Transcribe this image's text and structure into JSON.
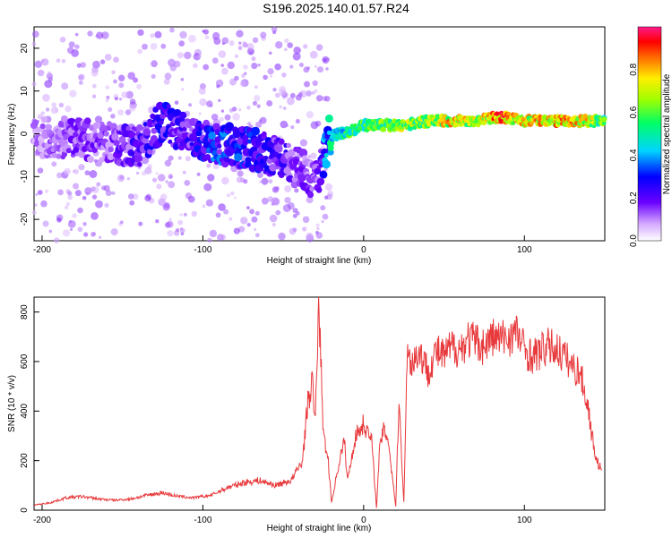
{
  "title": "S196.2025.140.01.57.R24",
  "chart_data": [
    {
      "type": "heatmap",
      "xlabel": "Height of straight line (km)",
      "ylabel": "Frequency (Hz)",
      "xlim": [
        -205,
        150
      ],
      "ylim": [
        -25,
        25
      ],
      "xticks": [
        -200,
        -100,
        0,
        100
      ],
      "xtick_labels": [
        "-200",
        "-100",
        "0",
        "100"
      ],
      "yticks": [
        -20,
        -10,
        0,
        10,
        20
      ],
      "ytick_labels": [
        "-20",
        "-10",
        "0",
        "10",
        "20"
      ],
      "colorbar": {
        "label": "Normalized spectral amplitude",
        "range": [
          0,
          1
        ],
        "ticks": [
          0.0,
          0.2,
          0.4,
          0.6,
          0.8
        ],
        "tick_labels": [
          "0.0",
          "0.2",
          "0.4",
          "0.6",
          "0.8"
        ]
      },
      "ridge": {
        "note_x": [
          -205,
          -180,
          -160,
          -140,
          -125,
          -110,
          -95,
          -80,
          -65,
          -50,
          -40,
          -30,
          -22,
          -15,
          -5,
          0,
          10,
          25,
          40,
          55,
          70,
          85,
          100,
          115,
          130,
          150
        ],
        "freq_y": [
          -1,
          -1,
          -2,
          -3,
          3,
          0,
          -2,
          -3,
          -4,
          -6,
          -8,
          -12,
          -1,
          0,
          1,
          2,
          2,
          2,
          3,
          3,
          3,
          4,
          3,
          3,
          3,
          3
        ],
        "amplitude": [
          0.1,
          0.15,
          0.15,
          0.2,
          0.25,
          0.2,
          0.3,
          0.3,
          0.25,
          0.2,
          0.15,
          0.15,
          0.4,
          0.5,
          0.6,
          0.55,
          0.6,
          0.7,
          0.65,
          0.8,
          0.7,
          0.9,
          0.75,
          0.8,
          0.85,
          0.6
        ]
      }
    },
    {
      "type": "line",
      "xlabel": "Height of straight line (km)",
      "ylabel": "SNR (10 * v/v)",
      "xlim": [
        -205,
        150
      ],
      "ylim": [
        0,
        860
      ],
      "xticks": [
        -200,
        -100,
        0,
        100
      ],
      "xtick_labels": [
        "-200",
        "-100",
        "0",
        "100"
      ],
      "yticks": [
        0,
        200,
        400,
        600,
        800
      ],
      "ytick_labels": [
        "0",
        "200",
        "400",
        "600",
        "800"
      ],
      "series": [
        {
          "color": "#e8393c",
          "x": [
            -205,
            -195,
            -185,
            -175,
            -165,
            -155,
            -145,
            -135,
            -125,
            -115,
            -105,
            -95,
            -85,
            -75,
            -65,
            -55,
            -45,
            -38,
            -35,
            -32,
            -30,
            -28,
            -25,
            -22,
            -20,
            -15,
            -12,
            -10,
            -5,
            0,
            5,
            8,
            10,
            12,
            15,
            20,
            22,
            25,
            27,
            30,
            35,
            40,
            45,
            50,
            55,
            60,
            65,
            70,
            75,
            80,
            85,
            90,
            95,
            100,
            105,
            110,
            115,
            120,
            125,
            130,
            135,
            140,
            142,
            145,
            148
          ],
          "y": [
            20,
            30,
            50,
            55,
            45,
            40,
            45,
            60,
            70,
            55,
            50,
            60,
            90,
            110,
            120,
            100,
            120,
            200,
            420,
            520,
            350,
            860,
            300,
            200,
            30,
            200,
            280,
            120,
            300,
            350,
            280,
            10,
            250,
            320,
            300,
            15,
            450,
            30,
            620,
            600,
            640,
            560,
            640,
            620,
            660,
            650,
            690,
            680,
            660,
            700,
            690,
            700,
            720,
            650,
            620,
            640,
            660,
            650,
            620,
            580,
            550,
            400,
            300,
            200,
            160
          ]
        }
      ]
    }
  ]
}
